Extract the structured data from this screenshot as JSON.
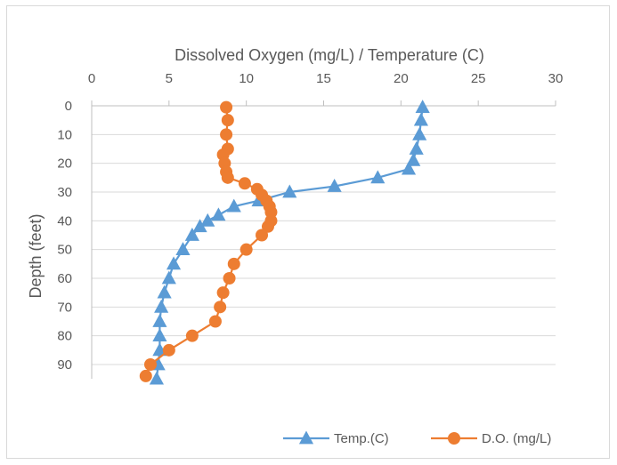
{
  "chart_data": {
    "type": "scatter",
    "title": "",
    "xlabel": "Dissolved Oxygen (mg/L) / Temperature (C)",
    "ylabel": "Depth (feet)",
    "xlim": [
      0,
      30
    ],
    "ylim": [
      0,
      95
    ],
    "y_inverted": true,
    "x_axis_position": "top",
    "x_ticks": [
      "0",
      "5",
      "10",
      "15",
      "20",
      "25",
      "30"
    ],
    "y_ticks": [
      "0",
      "10",
      "20",
      "30",
      "40",
      "50",
      "60",
      "70",
      "80",
      "90"
    ],
    "grid": true,
    "legend_position": "bottom-right",
    "series": [
      {
        "name": "Temp.(C)",
        "color": "#5b9bd5",
        "marker": "triangle",
        "points": [
          [
            21.4,
            0.5
          ],
          [
            21.3,
            5
          ],
          [
            21.2,
            10
          ],
          [
            21.0,
            15
          ],
          [
            20.8,
            19
          ],
          [
            20.5,
            22
          ],
          [
            18.5,
            25
          ],
          [
            15.7,
            28
          ],
          [
            12.8,
            30
          ],
          [
            10.8,
            33
          ],
          [
            9.2,
            35
          ],
          [
            8.2,
            38
          ],
          [
            7.5,
            40
          ],
          [
            7.0,
            42
          ],
          [
            6.5,
            45
          ],
          [
            5.9,
            50
          ],
          [
            5.3,
            55
          ],
          [
            5.0,
            60
          ],
          [
            4.7,
            65
          ],
          [
            4.5,
            70
          ],
          [
            4.4,
            75
          ],
          [
            4.4,
            80
          ],
          [
            4.4,
            85
          ],
          [
            4.3,
            90
          ],
          [
            4.2,
            95
          ]
        ]
      },
      {
        "name": "D.O. (mg/L)",
        "color": "#ed7d31",
        "marker": "circle",
        "points": [
          [
            8.7,
            0.5
          ],
          [
            8.8,
            5
          ],
          [
            8.7,
            10
          ],
          [
            8.8,
            15
          ],
          [
            8.5,
            17
          ],
          [
            8.6,
            20
          ],
          [
            8.7,
            23
          ],
          [
            8.8,
            25
          ],
          [
            9.9,
            27
          ],
          [
            10.7,
            29
          ],
          [
            11.0,
            31
          ],
          [
            11.3,
            33
          ],
          [
            11.5,
            35
          ],
          [
            11.6,
            37
          ],
          [
            11.6,
            40
          ],
          [
            11.4,
            42
          ],
          [
            11.0,
            45
          ],
          [
            10.0,
            50
          ],
          [
            9.2,
            55
          ],
          [
            8.9,
            60
          ],
          [
            8.5,
            65
          ],
          [
            8.3,
            70
          ],
          [
            8.0,
            75
          ],
          [
            6.5,
            80
          ],
          [
            5.0,
            85
          ],
          [
            3.8,
            90
          ],
          [
            3.5,
            94
          ]
        ]
      }
    ]
  }
}
